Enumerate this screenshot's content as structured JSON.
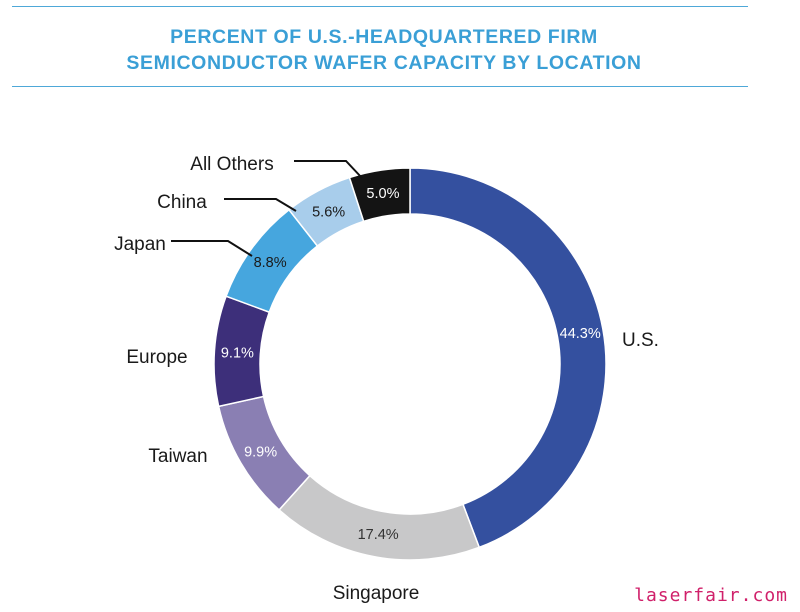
{
  "title_lines": [
    "PERCENT OF U.S.-HEADQUARTERED FIRM",
    "SEMICONDUCTOR WAFER CAPACITY BY LOCATION"
  ],
  "chart_data": {
    "type": "pie",
    "variant": "donut",
    "title": "PERCENT OF U.S.-HEADQUARTERED FIRM SEMICONDUCTOR WAFER CAPACITY BY LOCATION",
    "unit": "%",
    "slices": [
      {
        "label": "U.S.",
        "value": 44.3,
        "display": "44.3%",
        "color": "#34509f",
        "label_color": "#ffffff"
      },
      {
        "label": "Singapore",
        "value": 17.4,
        "display": "17.4%",
        "color": "#c8c8c9",
        "label_color": "#333333"
      },
      {
        "label": "Taiwan",
        "value": 9.9,
        "display": "9.9%",
        "color": "#8a7fb3",
        "label_color": "#ffffff"
      },
      {
        "label": "Europe",
        "value": 9.1,
        "display": "9.1%",
        "color": "#3d2f7a",
        "label_color": "#ffffff"
      },
      {
        "label": "Japan",
        "value": 8.8,
        "display": "8.8%",
        "color": "#46a6de",
        "label_color": "#1a1a1a"
      },
      {
        "label": "China",
        "value": 5.6,
        "display": "5.6%",
        "color": "#a8cdeb",
        "label_color": "#1a1a1a"
      },
      {
        "label": "All Others",
        "value": 5.0,
        "display": "5.0%",
        "color": "#141414",
        "label_color": "#ffffff"
      }
    ]
  },
  "watermark": "laserfair.com"
}
